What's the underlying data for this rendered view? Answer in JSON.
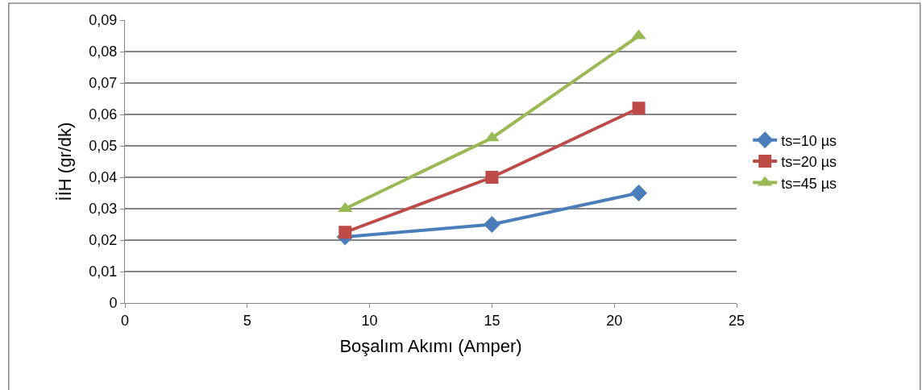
{
  "chart_data": {
    "type": "line",
    "xlabel": "Boşalım Akımı (Amper)",
    "ylabel": "İİH (gr/dk)",
    "x": [
      9,
      15,
      21
    ],
    "series": [
      {
        "name": "ts=10 µs",
        "color": "#4a7ebb",
        "marker": "diamond",
        "values": [
          0.021,
          0.025,
          0.035
        ]
      },
      {
        "name": "ts=20 µs",
        "color": "#be4b48",
        "marker": "square",
        "values": [
          0.0225,
          0.04,
          0.062
        ]
      },
      {
        "name": "ts=45 µs",
        "color": "#98b954",
        "marker": "triangle",
        "values": [
          0.03,
          0.0525,
          0.085
        ]
      }
    ],
    "xlim": [
      0,
      25
    ],
    "xticks": [
      0,
      5,
      10,
      15,
      20,
      25
    ],
    "ylim": [
      0,
      0.09
    ],
    "yticks": [
      0,
      {
        "value": 0.01,
        "label": "0,01"
      },
      {
        "value": 0.02,
        "label": "0,02"
      },
      {
        "value": 0.03,
        "label": "0,03"
      },
      {
        "value": 0.04,
        "label": "0,04"
      },
      {
        "value": 0.05,
        "label": "0,05"
      },
      {
        "value": 0.06,
        "label": "0,06"
      },
      {
        "value": 0.07,
        "label": "0,07"
      },
      {
        "value": 0.08,
        "label": "0,08"
      },
      {
        "value": 0.09,
        "label": "0,09"
      }
    ],
    "grid": "y",
    "legend": "right",
    "line_style": "solid"
  }
}
